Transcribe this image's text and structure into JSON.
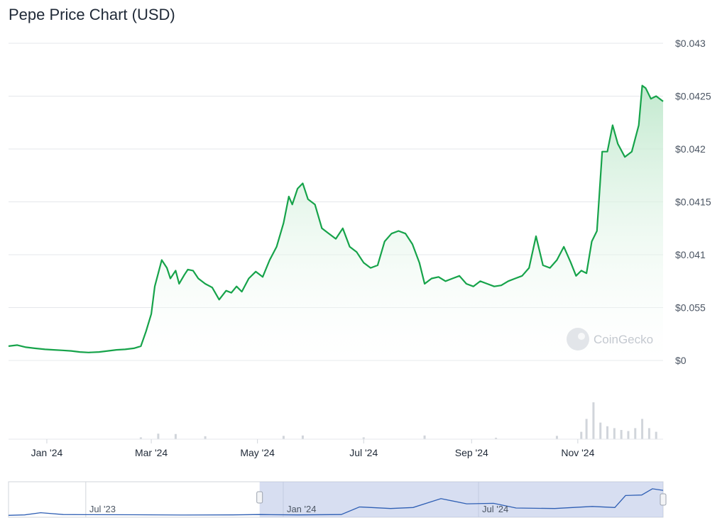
{
  "title": "Pepe Price Chart (USD)",
  "watermark": "CoinGecko",
  "colors": {
    "line": "#16a34a",
    "area_top": "#bfe8cc",
    "volume": "#d1d5db",
    "navigator_line": "#2f5fb4",
    "navigator_mask": "#b7c3e6",
    "grid": "#e5e7eb"
  },
  "chart_data": {
    "type": "area",
    "title": "Pepe Price Chart (USD)",
    "y_tick_labels": [
      "$0",
      "$0.055",
      "$0.041",
      "$0.0415",
      "$0.042",
      "$0.0425",
      "$0.043"
    ],
    "y_tick_values": [
      0,
      1,
      2,
      3,
      4,
      5,
      6
    ],
    "ylim": [
      0,
      6
    ],
    "x_tick_labels": [
      "Jan '24",
      "Mar '24",
      "May '24",
      "Jul '24",
      "Sep '24",
      "Nov '24"
    ],
    "x_tick_dates": [
      "2024-01-01",
      "2024-03-01",
      "2024-05-01",
      "2024-07-01",
      "2024-09-01",
      "2024-11-01"
    ],
    "xlim": [
      "2023-12-10",
      "2024-12-20"
    ],
    "grid": true,
    "legend": "none",
    "series": [
      {
        "x": [
          "2023-12-10",
          "2023-12-15",
          "2023-12-20",
          "2023-12-25",
          "2023-12-31",
          "2024-01-05",
          "2024-01-10",
          "2024-01-15",
          "2024-01-20",
          "2024-01-25",
          "2024-01-31",
          "2024-02-05",
          "2024-02-10",
          "2024-02-15",
          "2024-02-20",
          "2024-02-24",
          "2024-02-27",
          "2024-03-01",
          "2024-03-03",
          "2024-03-05",
          "2024-03-07",
          "2024-03-10",
          "2024-03-12",
          "2024-03-15",
          "2024-03-17",
          "2024-03-20",
          "2024-03-22",
          "2024-03-25",
          "2024-03-28",
          "2024-04-01",
          "2024-04-05",
          "2024-04-09",
          "2024-04-13",
          "2024-04-16",
          "2024-04-19",
          "2024-04-22",
          "2024-04-26",
          "2024-04-30",
          "2024-05-04",
          "2024-05-08",
          "2024-05-12",
          "2024-05-16",
          "2024-05-19",
          "2024-05-21",
          "2024-05-24",
          "2024-05-27",
          "2024-05-30",
          "2024-06-03",
          "2024-06-07",
          "2024-06-11",
          "2024-06-15",
          "2024-06-19",
          "2024-06-23",
          "2024-06-27",
          "2024-07-01",
          "2024-07-05",
          "2024-07-09",
          "2024-07-13",
          "2024-07-17",
          "2024-07-21",
          "2024-07-25",
          "2024-07-29",
          "2024-08-02",
          "2024-08-05",
          "2024-08-09",
          "2024-08-13",
          "2024-08-17",
          "2024-08-21",
          "2024-08-25",
          "2024-08-29",
          "2024-09-02",
          "2024-09-06",
          "2024-09-10",
          "2024-09-14",
          "2024-09-18",
          "2024-09-22",
          "2024-09-26",
          "2024-09-30",
          "2024-10-04",
          "2024-10-08",
          "2024-10-12",
          "2024-10-16",
          "2024-10-20",
          "2024-10-24",
          "2024-10-28",
          "2024-10-31",
          "2024-11-03",
          "2024-11-06",
          "2024-11-09",
          "2024-11-12",
          "2024-11-15",
          "2024-11-18",
          "2024-11-21",
          "2024-11-24",
          "2024-11-28",
          "2024-12-02",
          "2024-12-06",
          "2024-12-08",
          "2024-12-10",
          "2024-12-13",
          "2024-12-16",
          "2024-12-20"
        ],
        "y": [
          0.27,
          0.29,
          0.25,
          0.23,
          0.21,
          0.2,
          0.19,
          0.18,
          0.16,
          0.15,
          0.16,
          0.18,
          0.2,
          0.21,
          0.23,
          0.27,
          0.55,
          0.88,
          1.4,
          1.65,
          1.9,
          1.75,
          1.55,
          1.7,
          1.45,
          1.62,
          1.72,
          1.7,
          1.55,
          1.45,
          1.38,
          1.15,
          1.32,
          1.28,
          1.4,
          1.3,
          1.55,
          1.68,
          1.58,
          1.9,
          2.15,
          2.6,
          3.1,
          2.95,
          3.25,
          3.35,
          3.05,
          2.95,
          2.5,
          2.4,
          2.3,
          2.5,
          2.15,
          2.05,
          1.85,
          1.75,
          1.8,
          2.25,
          2.4,
          2.45,
          2.4,
          2.2,
          1.85,
          1.45,
          1.55,
          1.58,
          1.5,
          1.55,
          1.6,
          1.45,
          1.4,
          1.5,
          1.45,
          1.4,
          1.42,
          1.5,
          1.55,
          1.6,
          1.75,
          2.35,
          1.8,
          1.75,
          1.9,
          2.15,
          1.85,
          1.6,
          1.7,
          1.65,
          2.25,
          2.45,
          3.95,
          3.95,
          4.45,
          4.1,
          3.85,
          3.95,
          4.45,
          5.2,
          5.15,
          4.95,
          5.0,
          4.9
        ]
      }
    ]
  },
  "volume_data": {
    "dates": [
      "2024-02-24",
      "2024-03-05",
      "2024-03-15",
      "2024-04-01",
      "2024-05-16",
      "2024-05-27",
      "2024-07-01",
      "2024-08-05",
      "2024-09-15",
      "2024-10-20",
      "2024-11-03",
      "2024-11-06",
      "2024-11-10",
      "2024-11-14",
      "2024-11-18",
      "2024-11-22",
      "2024-11-26",
      "2024-11-30",
      "2024-12-04",
      "2024-12-08",
      "2024-12-12",
      "2024-12-16"
    ],
    "values": [
      0.05,
      0.15,
      0.14,
      0.08,
      0.09,
      0.1,
      0.05,
      0.1,
      0.04,
      0.09,
      0.2,
      0.55,
      1.0,
      0.45,
      0.35,
      0.3,
      0.25,
      0.22,
      0.3,
      0.55,
      0.3,
      0.2
    ]
  },
  "navigator": {
    "tick_labels": [
      "Jul '23",
      "Jan '24",
      "Jul '24"
    ],
    "tick_dates": [
      "2023-07-01",
      "2024-01-01",
      "2024-07-01"
    ],
    "range": [
      "2023-04-20",
      "2024-12-20"
    ],
    "selected": [
      "2023-12-10",
      "2024-12-20"
    ],
    "series": {
      "x": [
        "2023-04-20",
        "2023-05-05",
        "2023-05-20",
        "2023-06-10",
        "2023-07-01",
        "2023-08-15",
        "2023-10-01",
        "2023-11-15",
        "2023-12-10",
        "2024-01-15",
        "2024-02-24",
        "2024-03-12",
        "2024-04-10",
        "2024-05-01",
        "2024-05-27",
        "2024-06-20",
        "2024-07-15",
        "2024-08-05",
        "2024-09-10",
        "2024-10-15",
        "2024-11-05",
        "2024-11-15",
        "2024-11-30",
        "2024-12-10",
        "2024-12-20"
      ],
      "y": [
        0.1,
        0.18,
        0.6,
        0.25,
        0.22,
        0.2,
        0.15,
        0.18,
        0.25,
        0.18,
        0.25,
        1.7,
        1.4,
        1.6,
        3.3,
        2.3,
        2.4,
        1.5,
        1.4,
        1.8,
        1.6,
        3.9,
        4.0,
        5.2,
        4.9
      ]
    }
  }
}
